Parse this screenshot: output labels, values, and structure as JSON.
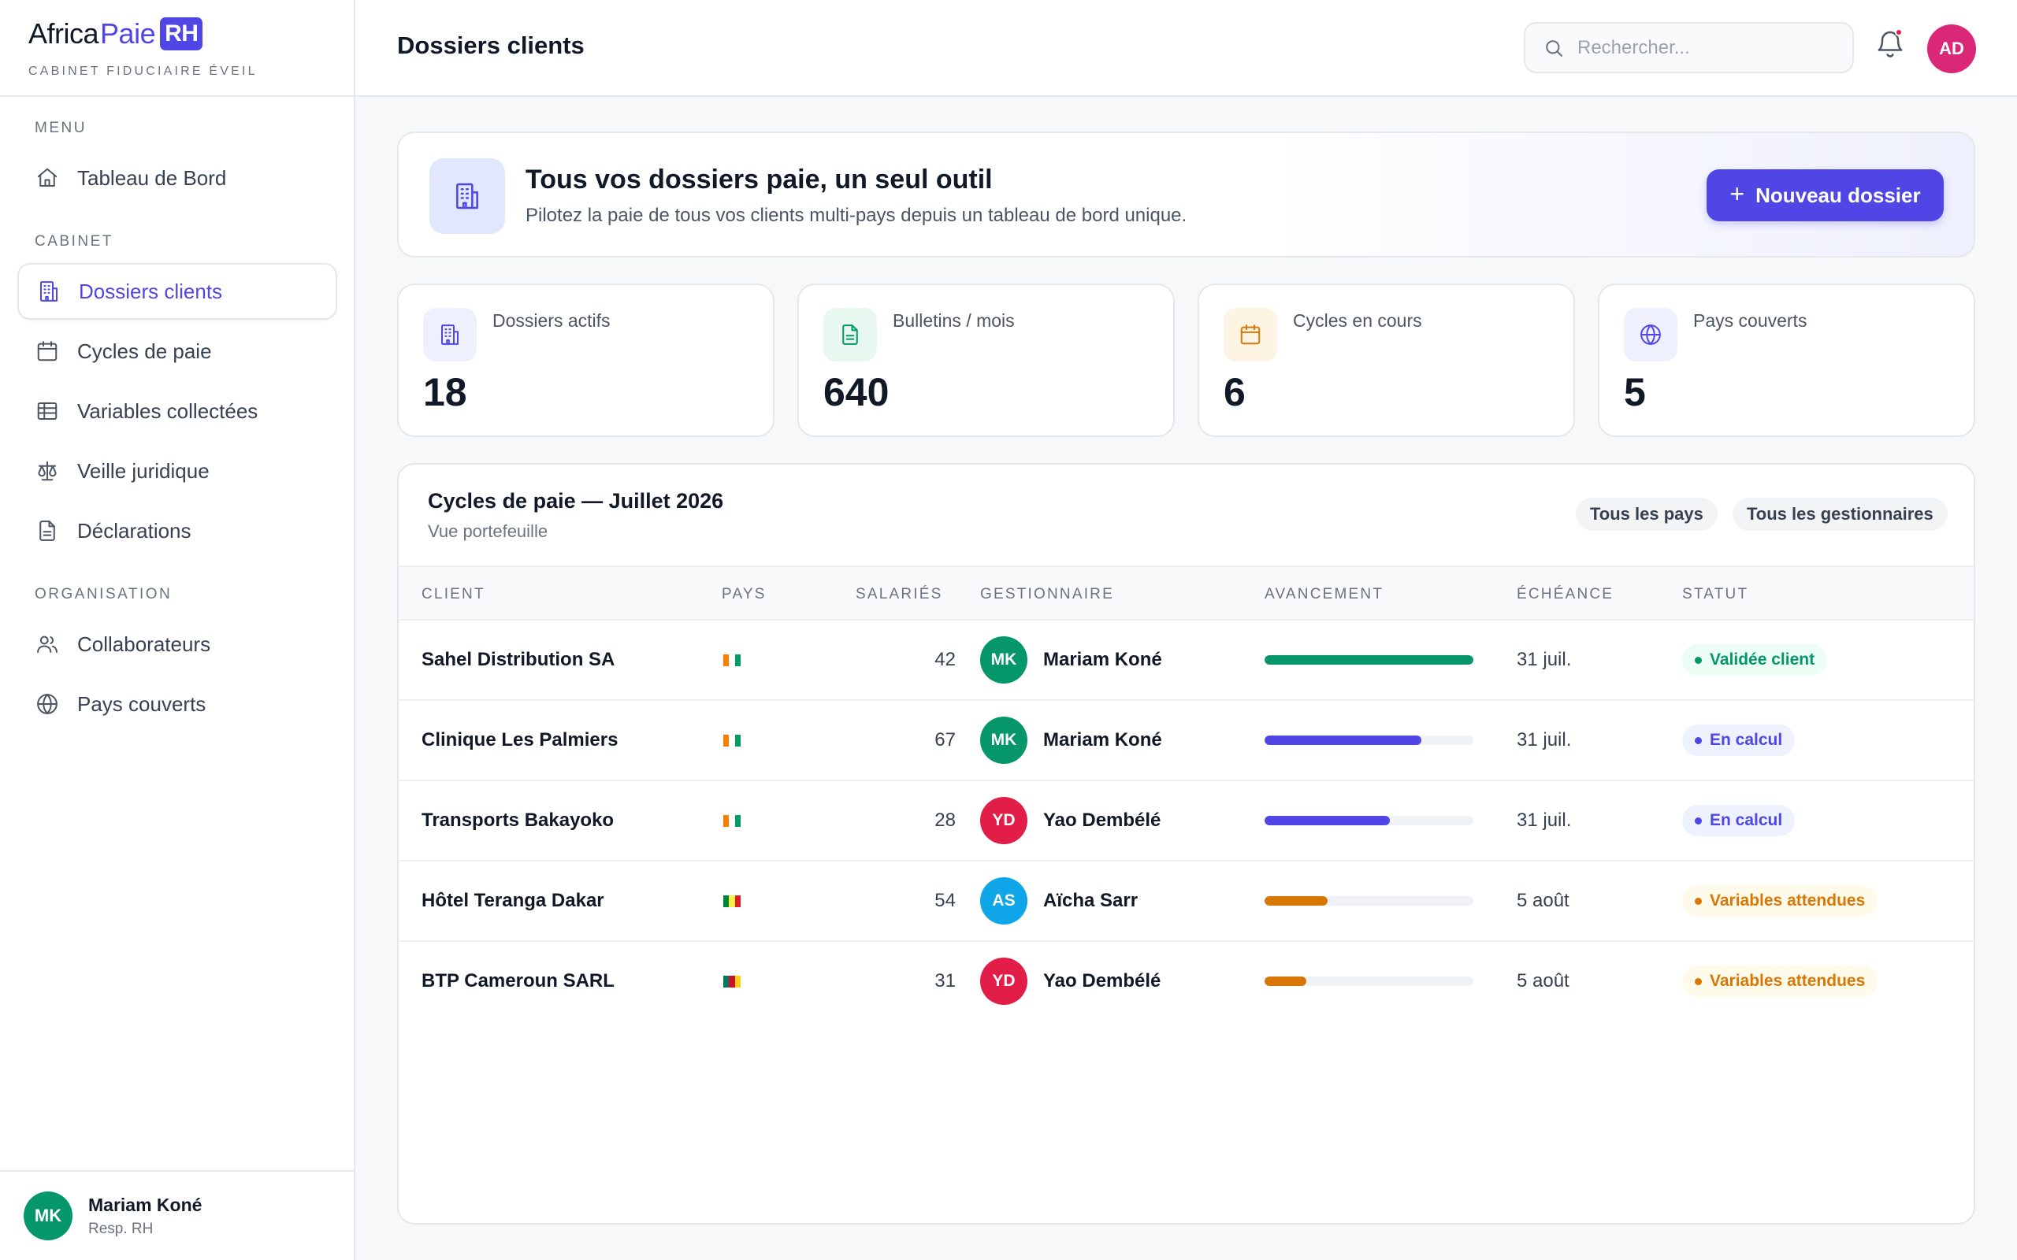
{
  "brand": {
    "africa": "Africa",
    "paie": "Paie",
    "rh": "RH",
    "firm": "CABINET FIDUCIAIRE ÉVEIL"
  },
  "sidebar": {
    "sections": {
      "menu": "MENU",
      "cabinet": "CABINET",
      "organisation": "ORGANISATION"
    },
    "items": [
      {
        "label": "Tableau de Bord",
        "icon": "home-icon"
      },
      {
        "label": "Dossiers clients",
        "icon": "building-icon",
        "active": true
      },
      {
        "label": "Cycles de paie",
        "icon": "calendar-icon"
      },
      {
        "label": "Variables collectées",
        "icon": "table-icon"
      },
      {
        "label": "Veille juridique",
        "icon": "scale-icon"
      },
      {
        "label": "Déclarations",
        "icon": "document-icon"
      },
      {
        "label": "Collaborateurs",
        "icon": "users-icon"
      },
      {
        "label": "Pays couverts",
        "icon": "globe-icon"
      }
    ],
    "user": {
      "initials": "MK",
      "name": "Mariam Koné",
      "role": "Resp. RH"
    }
  },
  "header": {
    "title": "Dossiers clients",
    "search_placeholder": "Rechercher...",
    "avatar_initials": "AD"
  },
  "hero": {
    "title": "Tous vos dossiers paie, un seul outil",
    "subtitle": "Pilotez la paie de tous vos clients multi-pays depuis un tableau de bord unique.",
    "button_label": "Nouveau dossier"
  },
  "stats": [
    {
      "label": "Dossiers actifs",
      "value": "18",
      "icon": "building-icon",
      "color": "#4F46E5",
      "bg": "#EEF0FD"
    },
    {
      "label": "Bulletins / mois",
      "value": "640",
      "icon": "document-icon",
      "color": "#059669",
      "bg": "#E8F7F0"
    },
    {
      "label": "Cycles en cours",
      "value": "6",
      "icon": "calendar-icon",
      "color": "#D97706",
      "bg": "#FDF4E3"
    },
    {
      "label": "Pays couverts",
      "value": "5",
      "icon": "globe-icon",
      "color": "#4F46E5",
      "bg": "#EEF0FD"
    }
  ],
  "table": {
    "title": "Cycles de paie — Juillet 2026",
    "subtitle": "Vue portefeuille",
    "filters": [
      "Tous les pays",
      "Tous les gestionnaires"
    ],
    "columns": [
      "CLIENT",
      "PAYS",
      "SALARIÉS",
      "GESTIONNAIRE",
      "AVANCEMENT",
      "ÉCHÉANCE",
      "STATUT"
    ],
    "rows": [
      {
        "client": "Sahel Distribution SA",
        "flag": [
          "#F77F00",
          "#FFFFFF",
          "#009E60"
        ],
        "salaries": "42",
        "initials": "MK",
        "avatar_color": "#059669",
        "gestionnaire": "Mariam Koné",
        "progress": 1.0,
        "bar_color": "#059669",
        "echeance": "31 juil.",
        "statut": "Validée client",
        "status_color": "#059669",
        "status_bg": "#ECFDF5"
      },
      {
        "client": "Clinique Les Palmiers",
        "flag": [
          "#F77F00",
          "#FFFFFF",
          "#009E60"
        ],
        "salaries": "67",
        "initials": "MK",
        "avatar_color": "#059669",
        "gestionnaire": "Mariam Koné",
        "progress": 0.75,
        "bar_color": "#4F46E5",
        "echeance": "31 juil.",
        "statut": "En calcul",
        "status_color": "#4F46E5",
        "status_bg": "#EEF2FF"
      },
      {
        "client": "Transports Bakayoko",
        "flag": [
          "#F77F00",
          "#FFFFFF",
          "#009E60"
        ],
        "salaries": "28",
        "initials": "YD",
        "avatar_color": "#E11D48",
        "gestionnaire": "Yao Dembélé",
        "progress": 0.6,
        "bar_color": "#4F46E5",
        "echeance": "31 juil.",
        "statut": "En calcul",
        "status_color": "#4F46E5",
        "status_bg": "#EEF2FF"
      },
      {
        "client": "Hôtel Teranga Dakar",
        "flag": [
          "#00853F",
          "#FDEF42",
          "#E31B23"
        ],
        "salaries": "54",
        "initials": "AS",
        "avatar_color": "#0EA5E9",
        "gestionnaire": "Aïcha Sarr",
        "progress": 0.3,
        "bar_color": "#D97706",
        "echeance": "5 août",
        "statut": "Variables attendues",
        "status_color": "#D97706",
        "status_bg": "#FFFBEB"
      },
      {
        "client": "BTP Cameroun SARL",
        "flag": [
          "#007A5E",
          "#CE1126",
          "#FCD116"
        ],
        "salaries": "31",
        "initials": "YD",
        "avatar_color": "#E11D48",
        "gestionnaire": "Yao Dembélé",
        "progress": 0.2,
        "bar_color": "#D97706",
        "echeance": "5 août",
        "statut": "Variables attendues",
        "status_color": "#D97706",
        "status_bg": "#FFFBEB"
      }
    ]
  }
}
